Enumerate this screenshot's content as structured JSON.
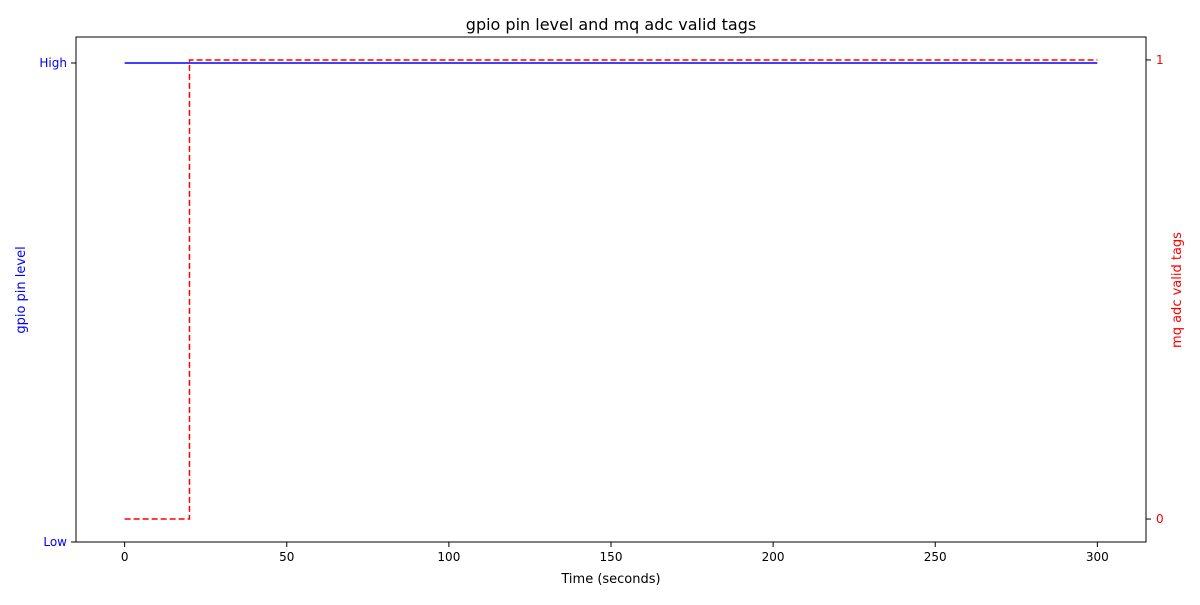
{
  "chart_data": {
    "type": "line",
    "title": "gpio pin level and mq adc valid tags",
    "xlabel": "Time (seconds)",
    "xlim": [
      -15,
      315
    ],
    "x_ticks": [
      0,
      50,
      100,
      150,
      200,
      250,
      300
    ],
    "left_axis": {
      "label": "gpio pin level",
      "color": "#0000ff",
      "ticks": [
        {
          "value": 0,
          "label": "Low"
        },
        {
          "value": 1,
          "label": "High"
        }
      ]
    },
    "right_axis": {
      "label": "mq adc valid tags",
      "color": "#ff0000",
      "ylim": [
        -0.05,
        1.05
      ],
      "ticks": [
        {
          "value": 0,
          "label": "0"
        },
        {
          "value": 1,
          "label": "1"
        }
      ]
    },
    "series": [
      {
        "axis": "left",
        "color": "#0000ff",
        "style": "solid",
        "x": [
          0,
          300
        ],
        "y": [
          1,
          1
        ]
      },
      {
        "axis": "right",
        "color": "#ff0000",
        "style": "dashed",
        "x": [
          0,
          20,
          20,
          300
        ],
        "y": [
          0,
          0,
          1,
          1
        ]
      }
    ],
    "grid": false
  }
}
